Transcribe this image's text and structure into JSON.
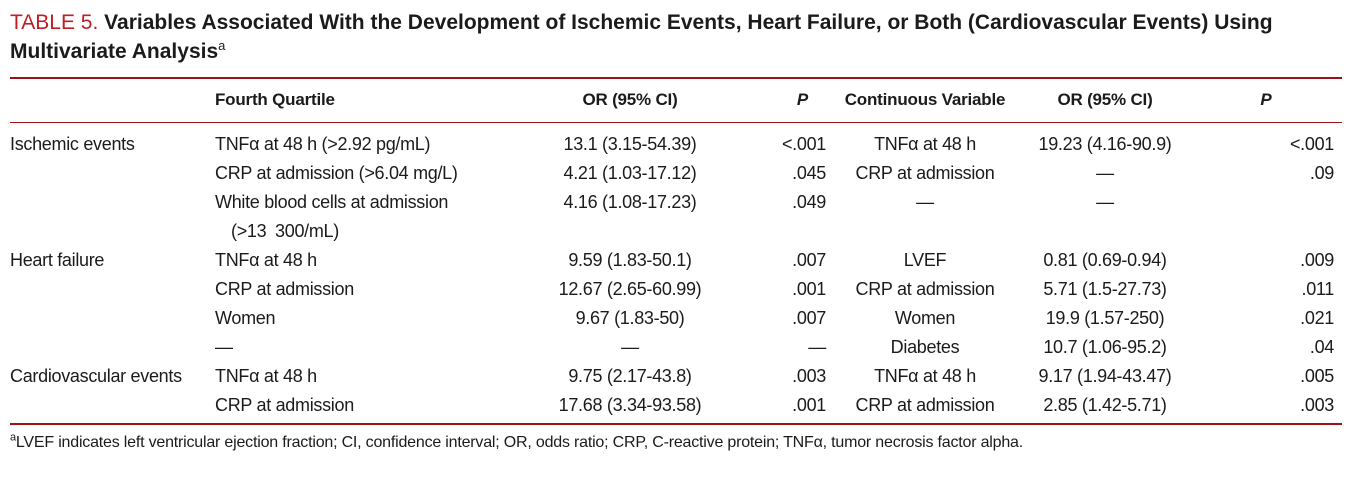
{
  "title": {
    "label": "TABLE 5.",
    "text": " Variables Associated With the Development of Ischemic Events, Heart Failure, or Both (Cardiovascular Events) Using Multivariate Analysis",
    "footnote_marker": "a"
  },
  "colors": {
    "title_red": "#bf1e24",
    "rule_red": "#9e1114",
    "text": "#1b1b1b",
    "background": "#ffffff"
  },
  "table": {
    "headers": {
      "group": "",
      "fq_var": "Fourth Quartile",
      "fq_or": "OR (95% CI)",
      "fq_p": "P",
      "cont_var": "Continuous Variable",
      "cont_or": "OR (95% CI)",
      "cont_p": "P"
    },
    "rows": [
      {
        "group": "Ischemic events",
        "fq_var": "TNFα at 48 h (>2.92 pg/mL)",
        "fq_or": "13.1 (3.15-54.39)",
        "fq_p": "<.001",
        "cont_var": "TNFα at 48 h",
        "cont_or": "19.23 (4.16-90.9)",
        "cont_p": "<.001"
      },
      {
        "group": "",
        "fq_var": "CRP at admission (>6.04 mg/L)",
        "fq_or": "4.21 (1.03-17.12)",
        "fq_p": ".045",
        "cont_var": "CRP at admission",
        "cont_or": "—",
        "cont_p": ".09"
      },
      {
        "group": "",
        "fq_var": "White blood cells at admission",
        "fq_var2": "(>13 300/mL)",
        "fq_or": "4.16 (1.08-17.23)",
        "fq_p": ".049",
        "cont_var": "—",
        "cont_or": "—",
        "cont_p": ""
      },
      {
        "group": "Heart failure",
        "fq_var": "TNFα at 48 h",
        "fq_or": "9.59 (1.83-50.1)",
        "fq_p": ".007",
        "cont_var": "LVEF",
        "cont_or": "0.81 (0.69-0.94)",
        "cont_p": ".009"
      },
      {
        "group": "",
        "fq_var": "CRP at admission",
        "fq_or": "12.67 (2.65-60.99)",
        "fq_p": ".001",
        "cont_var": "CRP at admission",
        "cont_or": "5.71 (1.5-27.73)",
        "cont_p": ".011"
      },
      {
        "group": "",
        "fq_var": "Women",
        "fq_or": "9.67 (1.83-50)",
        "fq_p": ".007",
        "cont_var": "Women",
        "cont_or": "19.9 (1.57-250)",
        "cont_p": ".021"
      },
      {
        "group": "",
        "fq_var": "—",
        "fq_or": "—",
        "fq_p": "—",
        "cont_var": "Diabetes",
        "cont_or": "10.7 (1.06-95.2)",
        "cont_p": ".04"
      },
      {
        "group": "Cardiovascular events",
        "fq_var": "TNFα at 48 h",
        "fq_or": "9.75 (2.17-43.8)",
        "fq_p": ".003",
        "cont_var": "TNFα at 48 h",
        "cont_or": "9.17 (1.94-43.47)",
        "cont_p": ".005"
      },
      {
        "group": "",
        "fq_var": "CRP at admission",
        "fq_or": "17.68 (3.34-93.58)",
        "fq_p": ".001",
        "cont_var": "CRP at admission",
        "cont_or": "2.85 (1.42-5.71)",
        "cont_p": ".003"
      }
    ]
  },
  "footnote": {
    "marker": "a",
    "text": "LVEF indicates left ventricular ejection fraction; CI, confidence interval; OR, odds ratio; CRP, C-reactive protein; TNFα, tumor necrosis factor alpha."
  }
}
